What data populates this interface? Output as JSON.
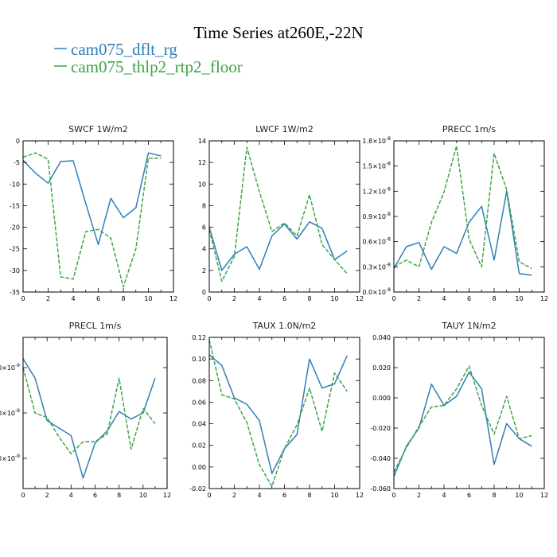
{
  "figure": {
    "title": "Time Series at260E,-22N"
  },
  "legend": [
    {
      "label": "cam075_dflt_rg",
      "color": "#2f7fb8",
      "dash": "solid"
    },
    {
      "label": "cam075_thlp2_rtp2_floor",
      "color": "#3ca544",
      "dash": "dash"
    }
  ],
  "chart_data": [
    {
      "type": "line",
      "title": "SWCF 1W/m2",
      "x": [
        0,
        1,
        2,
        3,
        4,
        5,
        6,
        7,
        8,
        9,
        10,
        11
      ],
      "xlim": [
        0,
        12
      ],
      "xticks": [
        0,
        2,
        4,
        6,
        8,
        10,
        12
      ],
      "ylim": [
        -35,
        0
      ],
      "yticks": [
        {
          "v": 0,
          "l": "0"
        },
        {
          "v": -5,
          "l": "-5"
        },
        {
          "v": -10,
          "l": "-10"
        },
        {
          "v": -15,
          "l": "-15"
        },
        {
          "v": -20,
          "l": "-20"
        },
        {
          "v": -25,
          "l": "-25"
        },
        {
          "v": -30,
          "l": "-30"
        },
        {
          "v": -35,
          "l": "-35"
        }
      ],
      "series": [
        {
          "name": "cam075_dflt_rg",
          "values": [
            -4.5,
            -7.5,
            -9.8,
            -4.8,
            -4.6,
            -14.5,
            -24,
            -13.3,
            -17.8,
            -15.5,
            -2.8,
            -3.5
          ]
        },
        {
          "name": "cam075_thlp2_rtp2_floor",
          "values": [
            -3.8,
            -2.8,
            -4.3,
            -31.5,
            -32,
            -21,
            -20.5,
            -22.5,
            -33.8,
            -25,
            -4,
            -4
          ]
        }
      ]
    },
    {
      "type": "line",
      "title": "LWCF 1W/m2",
      "x": [
        0,
        1,
        2,
        3,
        4,
        5,
        6,
        7,
        8,
        9,
        10,
        11
      ],
      "xlim": [
        0,
        12
      ],
      "xticks": [
        0,
        2,
        4,
        6,
        8,
        10,
        12
      ],
      "ylim": [
        0,
        14
      ],
      "yticks": [
        {
          "v": 0,
          "l": "0"
        },
        {
          "v": 2,
          "l": "2"
        },
        {
          "v": 4,
          "l": "4"
        },
        {
          "v": 6,
          "l": "6"
        },
        {
          "v": 8,
          "l": "8"
        },
        {
          "v": 10,
          "l": "10"
        },
        {
          "v": 12,
          "l": "12"
        },
        {
          "v": 14,
          "l": "14"
        }
      ],
      "series": [
        {
          "name": "cam075_dflt_rg",
          "values": [
            6,
            2,
            3.5,
            4.2,
            2.1,
            5.2,
            6.3,
            4.9,
            6.5,
            5.9,
            3,
            3.8
          ]
        },
        {
          "name": "cam075_thlp2_rtp2_floor",
          "values": [
            5.8,
            1,
            3.3,
            13.4,
            9.3,
            5.6,
            6.4,
            5.2,
            9,
            4.4,
            3,
            1.7
          ]
        }
      ]
    },
    {
      "type": "line",
      "title": "PRECC 1m/s",
      "x": [
        0,
        1,
        2,
        3,
        4,
        5,
        6,
        7,
        8,
        9,
        10,
        11
      ],
      "xlim": [
        0,
        12
      ],
      "xticks": [
        0,
        2,
        4,
        6,
        8,
        10,
        12
      ],
      "ylim": [
        0,
        1.8e-08
      ],
      "yticks": [
        {
          "v": 0,
          "l": "0.0×10",
          "e": "-8"
        },
        {
          "v": 3e-09,
          "l": "0.3×10",
          "e": "-8"
        },
        {
          "v": 6e-09,
          "l": "0.6×10",
          "e": "-8"
        },
        {
          "v": 9e-09,
          "l": "0.9×10",
          "e": "-8"
        },
        {
          "v": 1.2e-08,
          "l": "1.2×10",
          "e": "-8"
        },
        {
          "v": 1.5e-08,
          "l": "1.5×10",
          "e": "-8"
        },
        {
          "v": 1.8e-08,
          "l": "1.8×10",
          "e": "-8"
        }
      ],
      "series": [
        {
          "name": "cam075_dflt_rg",
          "values": [
            2.8e-09,
            5.4e-09,
            5.9e-09,
            2.7e-09,
            5.4e-09,
            4.6e-09,
            8.3e-09,
            1.02e-08,
            3.8e-09,
            1.2e-08,
            2.2e-09,
            2e-09
          ]
        },
        {
          "name": "cam075_thlp2_rtp2_floor",
          "values": [
            3e-09,
            3.8e-09,
            3e-09,
            8.3e-09,
            1.19e-08,
            1.74e-08,
            6.3e-09,
            3e-09,
            1.65e-08,
            1.22e-08,
            3.6e-09,
            2.8e-09
          ]
        }
      ]
    },
    {
      "type": "line",
      "title": "PRECL 1m/s",
      "x": [
        0,
        1,
        2,
        3,
        4,
        5,
        6,
        7,
        8,
        9,
        10,
        11
      ],
      "xlim": [
        0,
        12
      ],
      "xticks": [
        0,
        2,
        4,
        6,
        8,
        10,
        12
      ],
      "ylim": [
        0,
        1
      ],
      "yticks": [
        {
          "v": 0.8,
          "l": "0×10",
          "e": "-9"
        },
        {
          "v": 0.5,
          "l": "0×10",
          "e": "-9"
        },
        {
          "v": 0.2,
          "l": "0×10",
          "e": "-9"
        }
      ],
      "series": [
        {
          "name": "cam075_dflt_rg",
          "values": [
            0.86,
            0.73,
            0.45,
            0.4,
            0.35,
            0.07,
            0.3,
            0.38,
            0.51,
            0.46,
            0.5,
            0.73
          ]
        },
        {
          "name": "cam075_thlp2_rtp2_floor",
          "values": [
            0.8,
            0.5,
            0.47,
            0.34,
            0.23,
            0.31,
            0.31,
            0.36,
            0.73,
            0.26,
            0.53,
            0.43
          ]
        }
      ]
    },
    {
      "type": "line",
      "title": "TAUX 1.0N/m2",
      "x": [
        0,
        1,
        2,
        3,
        4,
        5,
        6,
        7,
        8,
        9,
        10,
        11
      ],
      "xlim": [
        0,
        12
      ],
      "xticks": [
        0,
        2,
        4,
        6,
        8,
        10,
        12
      ],
      "ylim": [
        -0.02,
        0.12
      ],
      "yticks": [
        {
          "v": -0.02,
          "l": "-0.02"
        },
        {
          "v": 0,
          "l": "0.00"
        },
        {
          "v": 0.02,
          "l": "0.02"
        },
        {
          "v": 0.04,
          "l": "0.04"
        },
        {
          "v": 0.06,
          "l": "0.06"
        },
        {
          "v": 0.08,
          "l": "0.08"
        },
        {
          "v": 0.1,
          "l": "0.10"
        },
        {
          "v": 0.12,
          "l": "0.12"
        }
      ],
      "series": [
        {
          "name": "cam075_dflt_rg",
          "values": [
            0.104,
            0.094,
            0.064,
            0.058,
            0.043,
            -0.006,
            0.017,
            0.03,
            0.1,
            0.073,
            0.077,
            0.103
          ]
        },
        {
          "name": "cam075_thlp2_rtp2_floor",
          "values": [
            0.118,
            0.067,
            0.063,
            0.041,
            0.002,
            -0.018,
            0.017,
            0.039,
            0.073,
            0.033,
            0.087,
            0.07
          ]
        }
      ]
    },
    {
      "type": "line",
      "title": "TAUY 1N/m2",
      "x": [
        0,
        1,
        2,
        3,
        4,
        5,
        6,
        7,
        8,
        9,
        10,
        11
      ],
      "xlim": [
        0,
        12
      ],
      "xticks": [
        0,
        2,
        4,
        6,
        8,
        10,
        12
      ],
      "ylim": [
        -0.06,
        0.04
      ],
      "yticks": [
        {
          "v": -0.06,
          "l": "-0.060"
        },
        {
          "v": -0.04,
          "l": "-0.040"
        },
        {
          "v": -0.02,
          "l": "-0.020"
        },
        {
          "v": 0,
          "l": "0.000"
        },
        {
          "v": 0.02,
          "l": "0.020"
        },
        {
          "v": 0.04,
          "l": "0.040"
        }
      ],
      "series": [
        {
          "name": "cam075_dflt_rg",
          "values": [
            -0.052,
            -0.032,
            -0.02,
            0.009,
            -0.005,
            0.001,
            0.017,
            0.006,
            -0.044,
            -0.017,
            -0.027,
            -0.032
          ]
        },
        {
          "name": "cam075_thlp2_rtp2_floor",
          "values": [
            -0.049,
            -0.033,
            -0.019,
            -0.006,
            -0.005,
            0.006,
            0.021,
            -0.005,
            -0.024,
            0.001,
            -0.027,
            -0.025
          ]
        }
      ]
    }
  ]
}
